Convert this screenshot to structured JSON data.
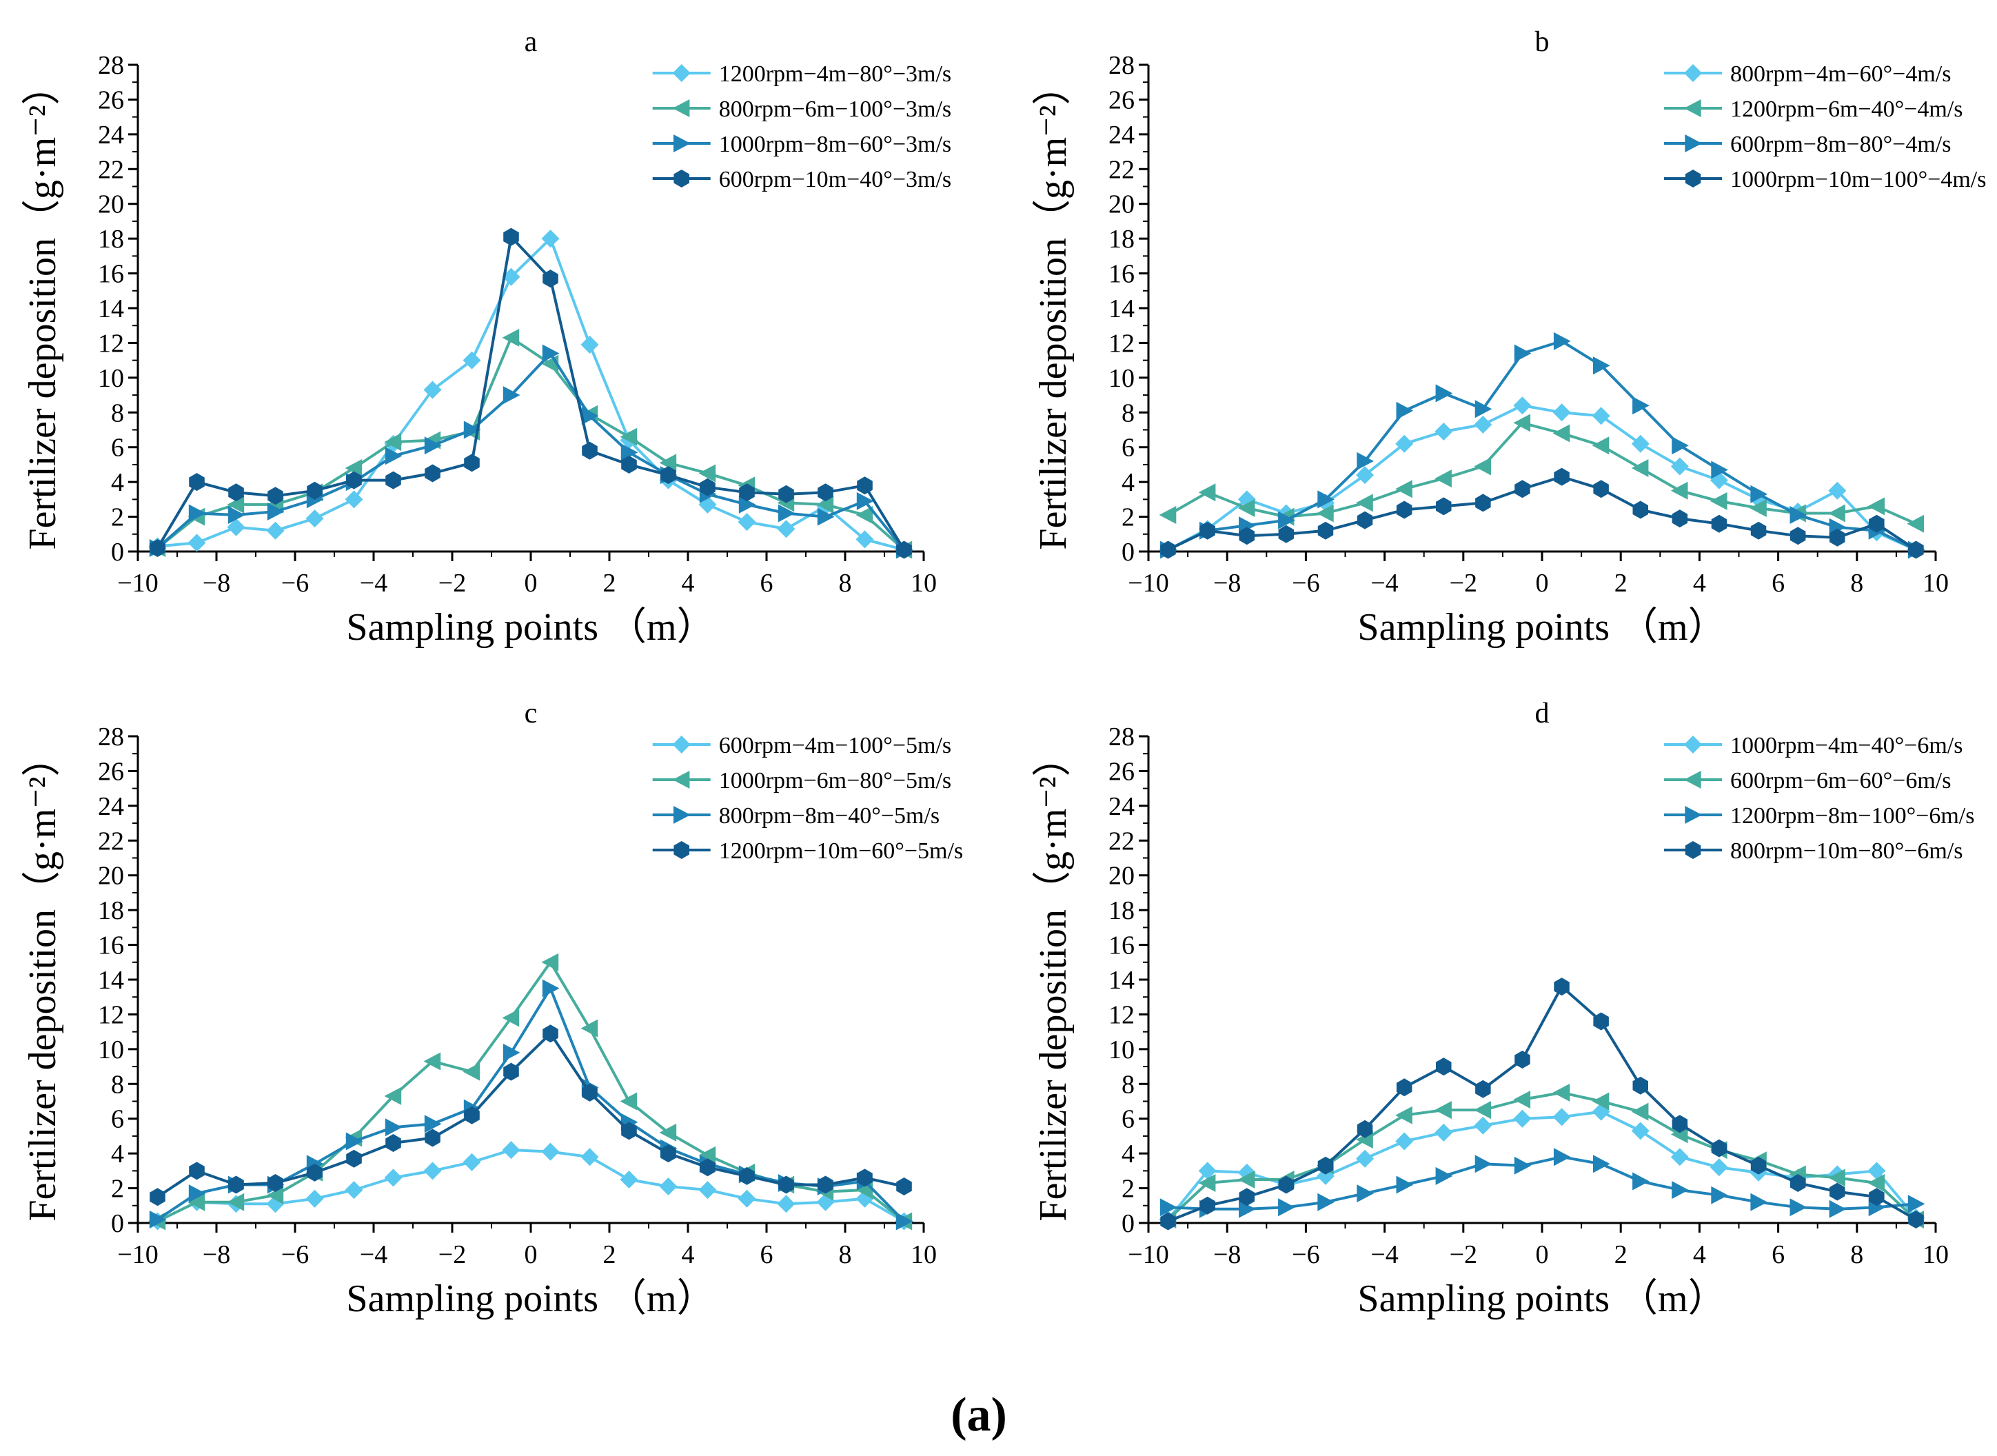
{
  "figure": {
    "caption": "(a)"
  },
  "chart_data": [
    {
      "type": "line",
      "panel": "a",
      "title": "a",
      "xlabel": "Sampling points （m）",
      "ylabel": "Fertilizer deposition（g·m⁻²）",
      "xlim": [
        -10,
        10
      ],
      "ylim": [
        0,
        28
      ],
      "xticks": [
        -10,
        -8,
        -6,
        -4,
        -2,
        0,
        2,
        4,
        6,
        8,
        10
      ],
      "yticks": [
        0,
        2,
        4,
        6,
        8,
        10,
        12,
        14,
        16,
        18,
        20,
        22,
        24,
        26,
        28
      ],
      "legend_position": "top-right",
      "x": [
        -9.5,
        -8.5,
        -7.5,
        -6.5,
        -5.5,
        -4.5,
        -3.5,
        -2.5,
        -1.5,
        -0.5,
        0.5,
        1.5,
        2.5,
        3.5,
        4.5,
        5.5,
        6.5,
        7.5,
        8.5,
        9.5
      ],
      "series": [
        {
          "name": "1200rpm−4m−80°−3m/s",
          "marker": "diamond",
          "color": "#5bc8ef",
          "values": [
            0.3,
            0.5,
            1.4,
            1.2,
            1.9,
            3.0,
            6.2,
            9.3,
            11.0,
            15.8,
            18.0,
            11.9,
            6.4,
            4.1,
            2.7,
            1.7,
            1.3,
            2.6,
            0.7,
            0.1
          ]
        },
        {
          "name": "800rpm−6m−100°−3m/s",
          "marker": "triangle-left",
          "color": "#45ad9d",
          "values": [
            0.2,
            2.0,
            2.7,
            2.7,
            3.4,
            4.8,
            6.3,
            6.4,
            6.9,
            12.3,
            10.8,
            7.9,
            6.6,
            5.1,
            4.5,
            3.8,
            2.8,
            2.7,
            2.1,
            0.1
          ]
        },
        {
          "name": "1000rpm−8m−60°−3m/s",
          "marker": "triangle-right",
          "color": "#1f83b8",
          "values": [
            0.2,
            2.2,
            2.1,
            2.3,
            3.0,
            4.0,
            5.5,
            6.1,
            7.0,
            9.0,
            11.4,
            7.8,
            5.7,
            4.4,
            3.3,
            2.7,
            2.2,
            2.0,
            2.9,
            0.1
          ]
        },
        {
          "name": "600rpm−10m−40°−3m/s",
          "marker": "hexagon",
          "color": "#125b8f",
          "values": [
            0.2,
            4.0,
            3.4,
            3.2,
            3.5,
            4.1,
            4.1,
            4.5,
            5.1,
            18.1,
            15.7,
            5.8,
            5.0,
            4.4,
            3.7,
            3.4,
            3.3,
            3.4,
            3.8,
            0.1
          ]
        }
      ]
    },
    {
      "type": "line",
      "panel": "b",
      "title": "b",
      "xlabel": "Sampling points （m）",
      "ylabel": "Fertilizer deposition（g·m⁻²）",
      "xlim": [
        -10,
        10
      ],
      "ylim": [
        0,
        28
      ],
      "xticks": [
        -10,
        -8,
        -6,
        -4,
        -2,
        0,
        2,
        4,
        6,
        8,
        10
      ],
      "yticks": [
        0,
        2,
        4,
        6,
        8,
        10,
        12,
        14,
        16,
        18,
        20,
        22,
        24,
        26,
        28
      ],
      "legend_position": "top-right",
      "x": [
        -9.5,
        -8.5,
        -7.5,
        -6.5,
        -5.5,
        -4.5,
        -3.5,
        -2.5,
        -1.5,
        -0.5,
        0.5,
        1.5,
        2.5,
        3.5,
        4.5,
        5.5,
        6.5,
        7.5,
        8.5,
        9.5
      ],
      "series": [
        {
          "name": "800rpm−4m−60°−4m/s",
          "marker": "diamond",
          "color": "#5bc8ef",
          "values": [
            0.1,
            1.3,
            3.0,
            2.2,
            2.8,
            4.4,
            6.2,
            6.9,
            7.3,
            8.4,
            8.0,
            7.8,
            6.2,
            4.9,
            4.1,
            3.0,
            2.3,
            3.5,
            1.1,
            0.1
          ]
        },
        {
          "name": "1200rpm−6m−40°−4m/s",
          "marker": "triangle-left",
          "color": "#45ad9d",
          "values": [
            2.1,
            3.4,
            2.5,
            2.0,
            2.2,
            2.8,
            3.6,
            4.2,
            4.9,
            7.4,
            6.8,
            6.1,
            4.8,
            3.5,
            2.9,
            2.5,
            2.2,
            2.2,
            2.6,
            1.6
          ]
        },
        {
          "name": "600rpm−8m−80°−4m/s",
          "marker": "triangle-right",
          "color": "#1f83b8",
          "values": [
            0.1,
            1.2,
            1.5,
            1.8,
            3.0,
            5.2,
            8.1,
            9.1,
            8.2,
            11.4,
            12.1,
            10.7,
            8.4,
            6.1,
            4.7,
            3.3,
            2.1,
            1.4,
            1.2,
            0.1
          ]
        },
        {
          "name": "1000rpm−10m−100°−4m/s",
          "marker": "hexagon",
          "color": "#125b8f",
          "values": [
            0.1,
            1.2,
            0.9,
            1.0,
            1.2,
            1.8,
            2.4,
            2.6,
            2.8,
            3.6,
            4.3,
            3.6,
            2.4,
            1.9,
            1.6,
            1.2,
            0.9,
            0.8,
            1.6,
            0.1
          ]
        }
      ]
    },
    {
      "type": "line",
      "panel": "c",
      "title": "c",
      "xlabel": "Sampling points （m）",
      "ylabel": "Fertilizer deposition（g·m⁻²）",
      "xlim": [
        -10,
        10
      ],
      "ylim": [
        0,
        28
      ],
      "xticks": [
        -10,
        -8,
        -6,
        -4,
        -2,
        0,
        2,
        4,
        6,
        8,
        10
      ],
      "yticks": [
        0,
        2,
        4,
        6,
        8,
        10,
        12,
        14,
        16,
        18,
        20,
        22,
        24,
        26,
        28
      ],
      "legend_position": "top-right",
      "x": [
        -9.5,
        -8.5,
        -7.5,
        -6.5,
        -5.5,
        -4.5,
        -3.5,
        -2.5,
        -1.5,
        -0.5,
        0.5,
        1.5,
        2.5,
        3.5,
        4.5,
        5.5,
        6.5,
        7.5,
        8.5,
        9.5
      ],
      "series": [
        {
          "name": "600rpm−4m−100°−5m/s",
          "marker": "diamond",
          "color": "#5bc8ef",
          "values": [
            0.1,
            1.2,
            1.1,
            1.1,
            1.4,
            1.9,
            2.6,
            3.0,
            3.5,
            4.2,
            4.1,
            3.8,
            2.5,
            2.1,
            1.9,
            1.4,
            1.1,
            1.2,
            1.4,
            0.1
          ]
        },
        {
          "name": "1000rpm−6m−80°−5m/s",
          "marker": "triangle-left",
          "color": "#45ad9d",
          "values": [
            0.1,
            1.2,
            1.2,
            1.6,
            2.9,
            4.9,
            7.3,
            9.3,
            8.7,
            11.8,
            15.0,
            11.2,
            7.0,
            5.2,
            3.9,
            2.9,
            2.2,
            1.8,
            1.9,
            0.1
          ]
        },
        {
          "name": "800rpm−8m−40°−5m/s",
          "marker": "triangle-right",
          "color": "#1f83b8",
          "values": [
            0.2,
            1.7,
            2.2,
            2.2,
            3.4,
            4.7,
            5.5,
            5.7,
            6.6,
            9.8,
            13.5,
            7.8,
            5.8,
            4.3,
            3.4,
            2.8,
            2.3,
            2.1,
            2.4,
            0.1
          ]
        },
        {
          "name": "1200rpm−10m−60°−5m/s",
          "marker": "hexagon",
          "color": "#125b8f",
          "values": [
            1.5,
            3.0,
            2.2,
            2.3,
            2.9,
            3.7,
            4.6,
            4.9,
            6.2,
            8.7,
            10.9,
            7.5,
            5.3,
            4.0,
            3.2,
            2.7,
            2.2,
            2.2,
            2.6,
            2.1
          ]
        }
      ]
    },
    {
      "type": "line",
      "panel": "d",
      "title": "d",
      "xlabel": "Sampling points （m）",
      "ylabel": "Fertilizer deposition（g·m⁻²）",
      "xlim": [
        -10,
        10
      ],
      "ylim": [
        0,
        28
      ],
      "xticks": [
        -10,
        -8,
        -6,
        -4,
        -2,
        0,
        2,
        4,
        6,
        8,
        10
      ],
      "yticks": [
        0,
        2,
        4,
        6,
        8,
        10,
        12,
        14,
        16,
        18,
        20,
        22,
        24,
        26,
        28
      ],
      "legend_position": "top-right",
      "x": [
        -9.5,
        -8.5,
        -7.5,
        -6.5,
        -5.5,
        -4.5,
        -3.5,
        -2.5,
        -1.5,
        -0.5,
        0.5,
        1.5,
        2.5,
        3.5,
        4.5,
        5.5,
        6.5,
        7.5,
        8.5,
        9.5
      ],
      "series": [
        {
          "name": "1000rpm−4m−40°−6m/s",
          "marker": "diamond",
          "color": "#5bc8ef",
          "values": [
            0.2,
            3.0,
            2.9,
            2.2,
            2.7,
            3.7,
            4.7,
            5.2,
            5.6,
            6.0,
            6.1,
            6.4,
            5.3,
            3.8,
            3.2,
            2.9,
            2.6,
            2.8,
            3.0,
            0.3
          ]
        },
        {
          "name": "600rpm−6m−60°−6m/s",
          "marker": "triangle-left",
          "color": "#45ad9d",
          "values": [
            0.2,
            2.3,
            2.5,
            2.5,
            3.3,
            4.8,
            6.2,
            6.5,
            6.5,
            7.1,
            7.5,
            7.0,
            6.4,
            5.1,
            4.2,
            3.6,
            2.8,
            2.6,
            2.3,
            0.2
          ]
        },
        {
          "name": "1200rpm−8m−100°−6m/s",
          "marker": "triangle-right",
          "color": "#1f83b8",
          "values": [
            0.9,
            0.8,
            0.8,
            0.9,
            1.2,
            1.7,
            2.2,
            2.7,
            3.4,
            3.3,
            3.8,
            3.4,
            2.4,
            1.9,
            1.6,
            1.2,
            0.9,
            0.8,
            0.9,
            1.1
          ]
        },
        {
          "name": "800rpm−10m−80°−6m/s",
          "marker": "hexagon",
          "color": "#125b8f",
          "values": [
            0.1,
            1.0,
            1.5,
            2.2,
            3.3,
            5.4,
            7.8,
            9.0,
            7.7,
            9.4,
            13.6,
            11.6,
            7.9,
            5.7,
            4.3,
            3.3,
            2.3,
            1.8,
            1.5,
            0.2
          ]
        }
      ]
    }
  ]
}
